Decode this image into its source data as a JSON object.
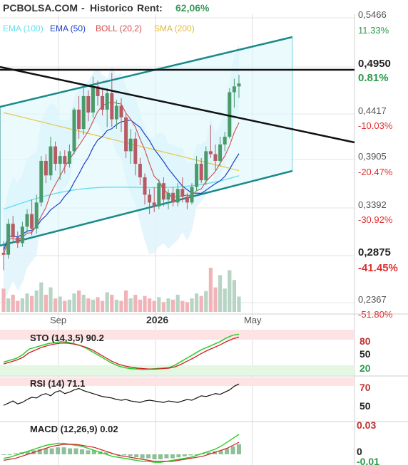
{
  "header": {
    "site": "PCBOLSA.COM",
    "sep": "-",
    "section": "Historico",
    "rent_label": "Rent:",
    "rent_value": "62,06%"
  },
  "legend": [
    {
      "label": "EMA (100)",
      "color": "#66e0ee"
    },
    {
      "label": "EMA (50)",
      "color": "#1a3fd0"
    },
    {
      "label": "BOLL (20,2)",
      "color": "#d34a4a"
    },
    {
      "label": "SMA (200)",
      "color": "#e6c44a"
    }
  ],
  "colors": {
    "up": "#4a9a6a",
    "down": "#b75a63",
    "boll_fill": "#d9f3fb",
    "channel_fill": "#dcf6fb",
    "volume_up": "#b7d4c4",
    "volume_down": "#f1b3b7",
    "pct_positive": "#2a9a4a",
    "pct_negative": "#e03030"
  },
  "price_axis": {
    "levels": [
      {
        "price": "0,5466",
        "pct": "11.33%",
        "bold": false
      },
      {
        "price": "0,4950",
        "pct": "0.81%",
        "bold": true
      },
      {
        "price": "0,4417",
        "pct": "-10.03%",
        "bold": false
      },
      {
        "price": "0,3905",
        "pct": "-20.47%",
        "bold": false
      },
      {
        "price": "0,3392",
        "pct": "-30.92%",
        "bold": false
      },
      {
        "price": "0,2875",
        "pct": "-41.45%",
        "bold": true
      },
      {
        "price": "0,2367",
        "pct": "-51.80%",
        "bold": false
      }
    ]
  },
  "x_axis": {
    "labels": [
      "Sep",
      "2026",
      "May"
    ]
  },
  "indicators": {
    "sto": {
      "label": "STO (14,3,5) 90.2",
      "levels": [
        "80",
        "50",
        "20"
      ]
    },
    "rsi": {
      "label": "RSI (14) 71.1",
      "levels": [
        "70",
        "50"
      ]
    },
    "macd": {
      "label": "MACD (12,26,9) 0.02",
      "levels": [
        "0.03",
        "0",
        "-0.01"
      ]
    }
  },
  "chart_data": {
    "type": "candlestick",
    "ylim": [
      0.2367,
      0.5466
    ],
    "candles": [
      [
        0.3,
        0.312,
        0.282,
        0.298
      ],
      [
        0.298,
        0.335,
        0.294,
        0.33
      ],
      [
        0.33,
        0.338,
        0.31,
        0.316
      ],
      [
        0.316,
        0.322,
        0.305,
        0.31
      ],
      [
        0.31,
        0.332,
        0.306,
        0.327
      ],
      [
        0.327,
        0.345,
        0.32,
        0.34
      ],
      [
        0.34,
        0.355,
        0.318,
        0.325
      ],
      [
        0.325,
        0.36,
        0.32,
        0.352
      ],
      [
        0.352,
        0.4,
        0.348,
        0.395
      ],
      [
        0.395,
        0.402,
        0.372,
        0.38
      ],
      [
        0.38,
        0.42,
        0.375,
        0.41
      ],
      [
        0.41,
        0.415,
        0.385,
        0.392
      ],
      [
        0.392,
        0.405,
        0.375,
        0.4
      ],
      [
        0.4,
        0.406,
        0.382,
        0.392
      ],
      [
        0.392,
        0.412,
        0.388,
        0.405
      ],
      [
        0.405,
        0.45,
        0.402,
        0.448
      ],
      [
        0.448,
        0.462,
        0.418,
        0.428
      ],
      [
        0.428,
        0.47,
        0.422,
        0.462
      ],
      [
        0.462,
        0.468,
        0.436,
        0.445
      ],
      [
        0.445,
        0.482,
        0.44,
        0.472
      ],
      [
        0.472,
        0.478,
        0.452,
        0.462
      ],
      [
        0.462,
        0.47,
        0.442,
        0.448
      ],
      [
        0.448,
        0.47,
        0.43,
        0.465
      ],
      [
        0.465,
        0.486,
        0.43,
        0.438
      ],
      [
        0.438,
        0.458,
        0.428,
        0.452
      ],
      [
        0.452,
        0.46,
        0.425,
        0.44
      ],
      [
        0.44,
        0.445,
        0.398,
        0.405
      ],
      [
        0.405,
        0.428,
        0.392,
        0.418
      ],
      [
        0.418,
        0.425,
        0.38,
        0.392
      ],
      [
        0.392,
        0.398,
        0.37,
        0.378
      ],
      [
        0.378,
        0.382,
        0.35,
        0.36
      ],
      [
        0.36,
        0.366,
        0.34,
        0.352
      ],
      [
        0.352,
        0.368,
        0.342,
        0.348
      ],
      [
        0.348,
        0.376,
        0.345,
        0.372
      ],
      [
        0.372,
        0.378,
        0.348,
        0.355
      ],
      [
        0.355,
        0.366,
        0.345,
        0.362
      ],
      [
        0.362,
        0.368,
        0.348,
        0.352
      ],
      [
        0.352,
        0.372,
        0.348,
        0.366
      ],
      [
        0.366,
        0.378,
        0.352,
        0.358
      ],
      [
        0.358,
        0.362,
        0.345,
        0.352
      ],
      [
        0.352,
        0.372,
        0.35,
        0.368
      ],
      [
        0.368,
        0.4,
        0.364,
        0.392
      ],
      [
        0.392,
        0.398,
        0.372,
        0.375
      ],
      [
        0.375,
        0.41,
        0.37,
        0.405
      ],
      [
        0.405,
        0.432,
        0.398,
        0.402
      ],
      [
        0.402,
        0.412,
        0.385,
        0.395
      ],
      [
        0.395,
        0.42,
        0.39,
        0.412
      ],
      [
        0.412,
        0.425,
        0.405,
        0.42
      ],
      [
        0.42,
        0.47,
        0.418,
        0.466
      ],
      [
        0.466,
        0.48,
        0.45,
        0.472
      ],
      [
        0.472,
        0.484,
        0.46,
        0.475
      ]
    ],
    "volume": [
      38,
      22,
      28,
      18,
      22,
      30,
      26,
      35,
      48,
      28,
      40,
      22,
      25,
      18,
      20,
      30,
      35,
      28,
      22,
      20,
      24,
      18,
      32,
      28,
      20,
      18,
      35,
      22,
      28,
      20,
      26,
      22,
      18,
      24,
      16,
      22,
      20,
      28,
      18,
      16,
      22,
      30,
      26,
      34,
      72,
      40,
      60,
      38,
      68,
      52,
      25
    ],
    "sto": {
      "k": [
        30,
        34,
        38,
        46,
        58,
        62,
        66,
        70,
        72,
        74,
        73,
        70,
        66,
        60,
        52,
        44,
        36,
        28,
        22,
        18,
        16,
        15,
        14,
        15,
        16,
        17,
        18,
        24,
        32,
        40,
        48,
        56,
        62,
        68,
        74,
        82,
        88,
        90.2
      ],
      "d": [
        26,
        30,
        34,
        40,
        50,
        56,
        62,
        66,
        69,
        71,
        71,
        69,
        66,
        62,
        56,
        48,
        40,
        32,
        26,
        22,
        19,
        17,
        16,
        15,
        15,
        16,
        17,
        20,
        26,
        33,
        40,
        48,
        55,
        61,
        67,
        74,
        80,
        84
      ]
    },
    "rsi": [
      42,
      45,
      48,
      44,
      46,
      50,
      53,
      52,
      56,
      58,
      55,
      60,
      62,
      58,
      60,
      63,
      65,
      62,
      60,
      58,
      56,
      54,
      53,
      52,
      50,
      49,
      50,
      48,
      47,
      46,
      48,
      49,
      48,
      47,
      46,
      48,
      47,
      46,
      48,
      50,
      49,
      52,
      55,
      54,
      56,
      58,
      57,
      60,
      63,
      68,
      71.1
    ],
    "macd": {
      "hist": [
        0.0,
        0.0,
        0.001,
        0.002,
        0.003,
        0.004,
        0.005,
        0.006,
        0.006,
        0.007,
        0.007,
        0.006,
        0.006,
        0.005,
        0.004,
        0.004,
        0.003,
        0.002,
        0.001,
        0.0,
        -0.001,
        -0.002,
        -0.003,
        -0.004,
        -0.004,
        -0.005,
        -0.005,
        -0.004,
        -0.004,
        -0.003,
        -0.002,
        -0.001,
        0.0,
        0.001,
        0.002,
        0.003,
        0.004,
        0.006,
        0.008,
        0.01
      ],
      "macd": [
        -0.004,
        -0.003,
        -0.001,
        0.001,
        0.003,
        0.005,
        0.007,
        0.009,
        0.01,
        0.011,
        0.011,
        0.01,
        0.009,
        0.008,
        0.006,
        0.004,
        0.002,
        0.0,
        -0.002,
        -0.003,
        -0.004,
        -0.005,
        -0.006,
        -0.007,
        -0.007,
        -0.008,
        -0.008,
        -0.007,
        -0.006,
        -0.005,
        -0.004,
        -0.003,
        -0.001,
        0.001,
        0.003,
        0.005,
        0.008,
        0.012,
        0.016,
        0.02
      ],
      "signal": [
        -0.006,
        -0.005,
        -0.004,
        -0.002,
        0.0,
        0.002,
        0.004,
        0.006,
        0.008,
        0.009,
        0.01,
        0.01,
        0.01,
        0.009,
        0.008,
        0.007,
        0.005,
        0.003,
        0.001,
        -0.001,
        -0.002,
        -0.003,
        -0.004,
        -0.005,
        -0.006,
        -0.007,
        -0.007,
        -0.007,
        -0.007,
        -0.006,
        -0.005,
        -0.004,
        -0.003,
        -0.002,
        0.0,
        0.002,
        0.004,
        0.006,
        0.009,
        0.012
      ]
    }
  }
}
